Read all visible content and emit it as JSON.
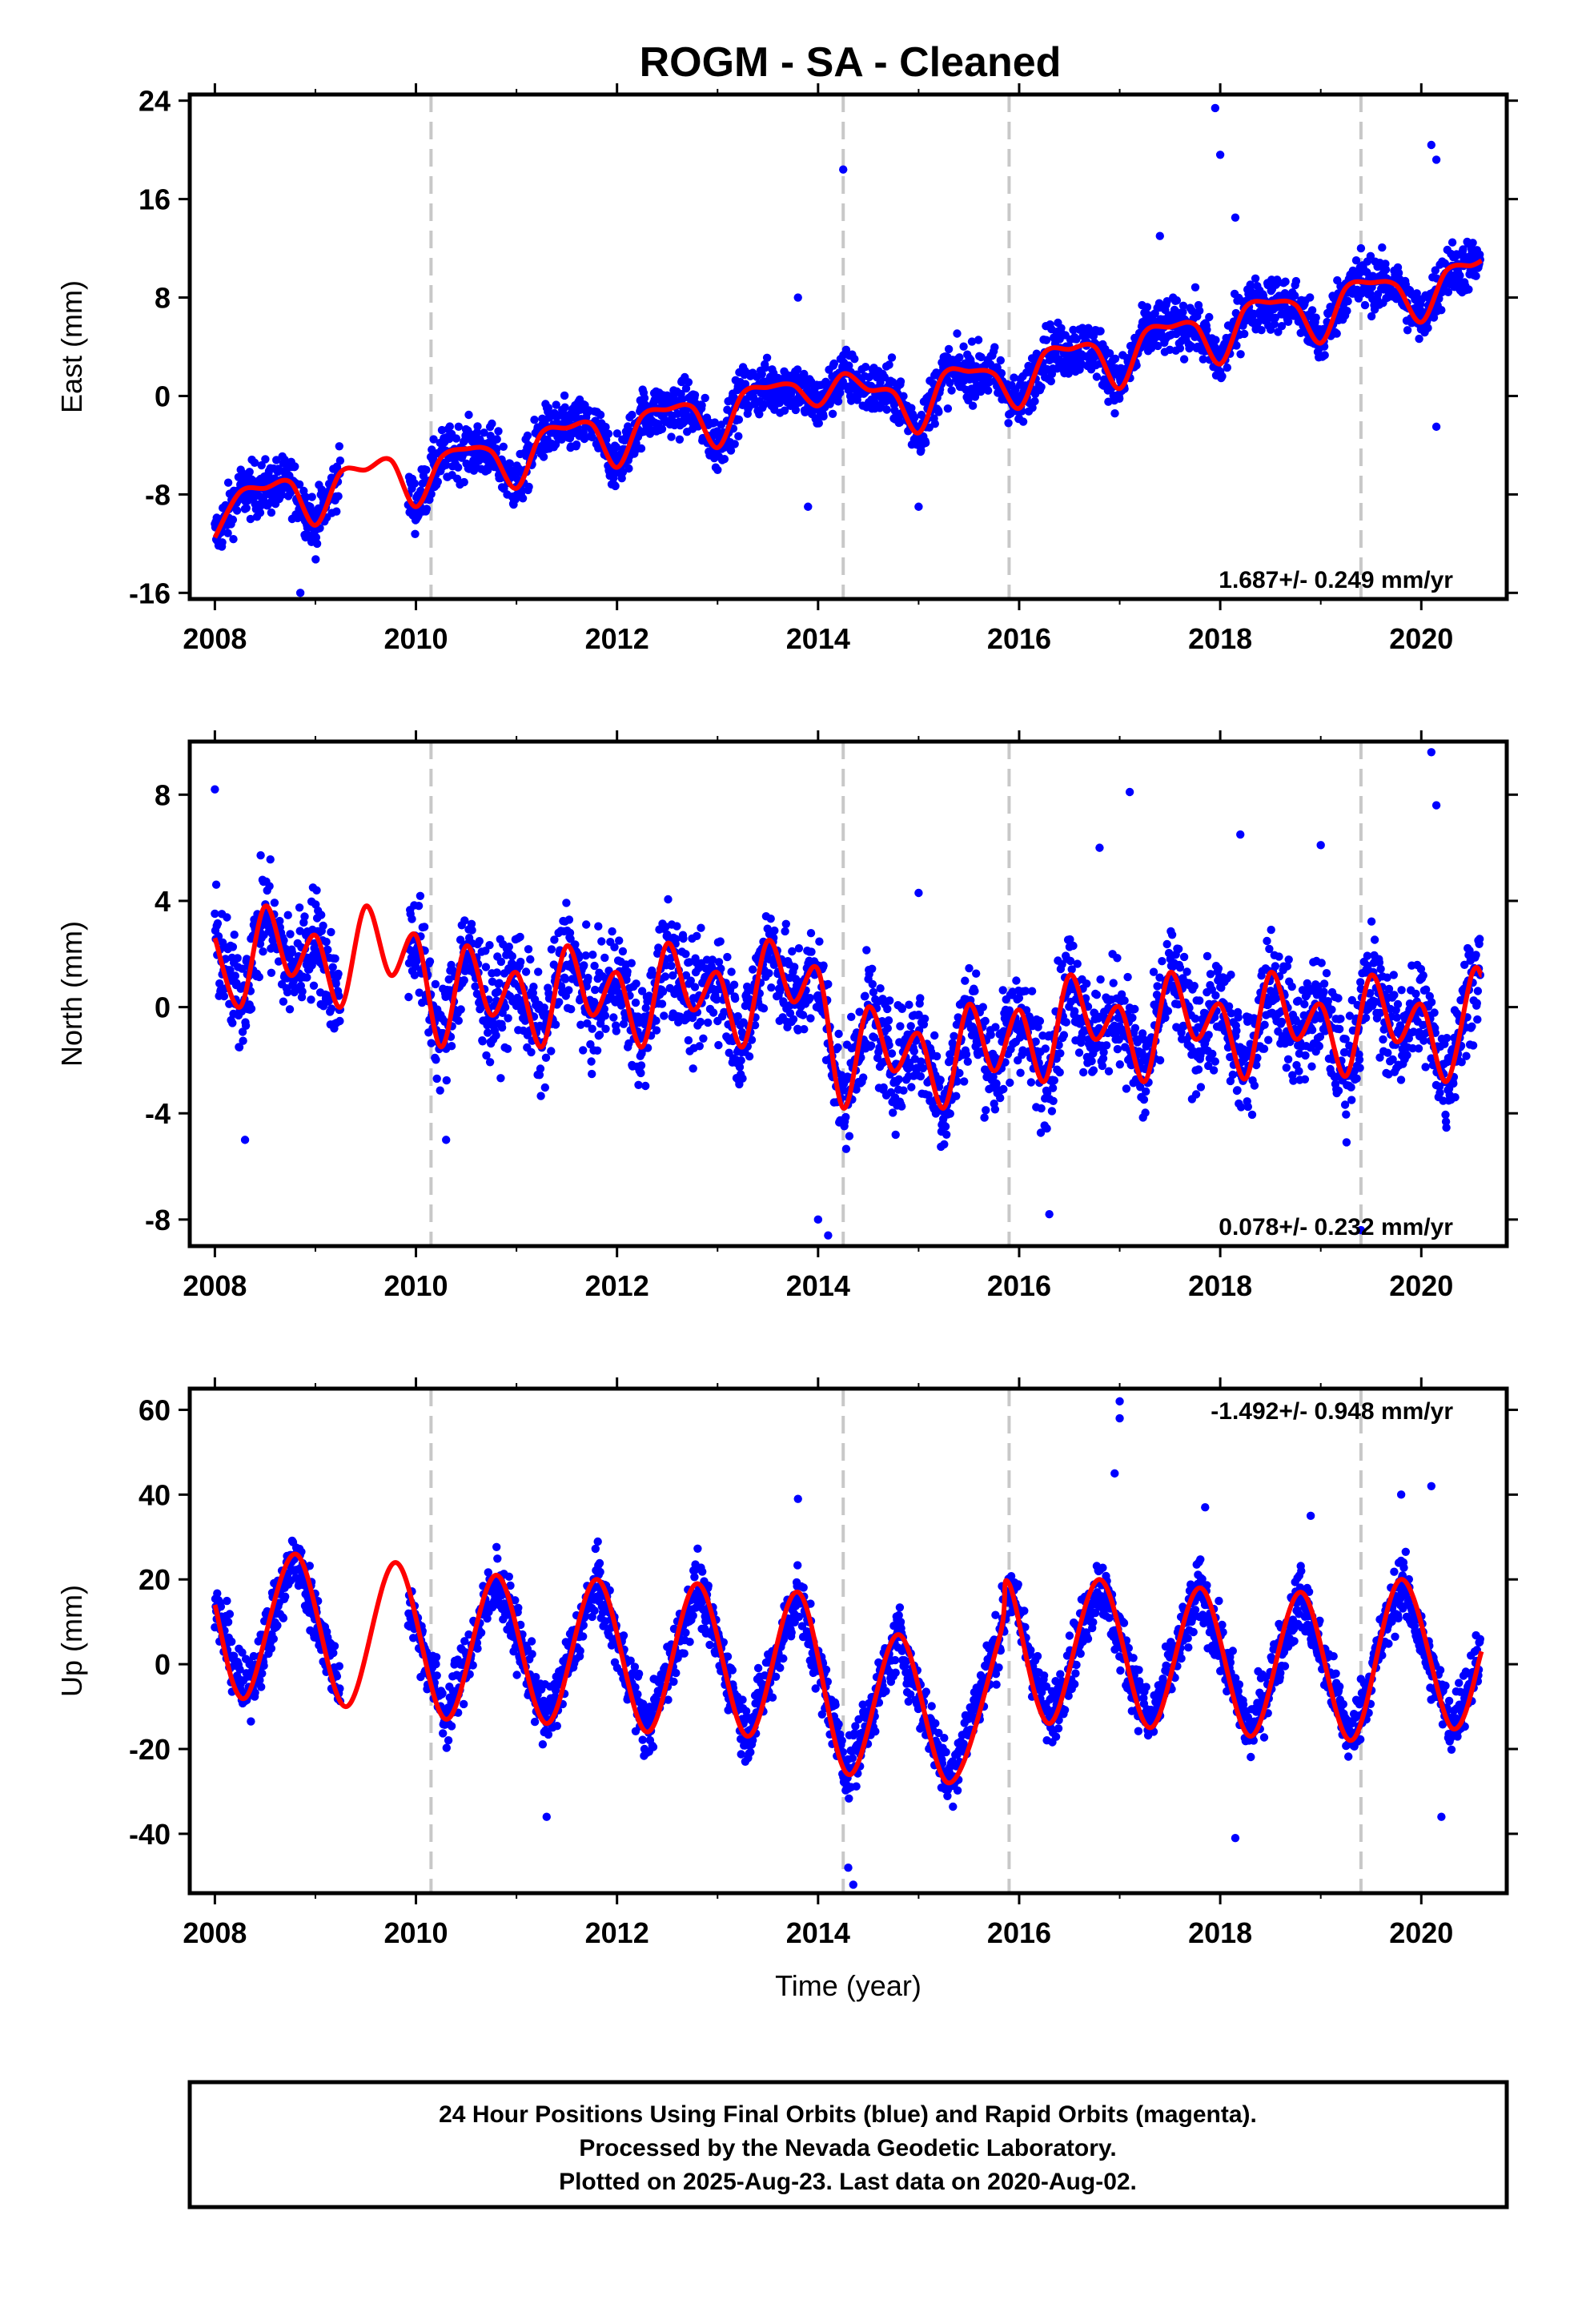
{
  "title": "ROGM  - SA - Cleaned",
  "footer": {
    "lines": [
      "24 Hour Positions Using Final Orbits (blue) and Rapid Orbits (magenta).",
      "Processed by the Nevada Geodetic Laboratory.",
      "Plotted on 2025-Aug-23. Last data on 2020-Aug-02."
    ]
  },
  "colors": {
    "data_points": "#0000ff",
    "model_curve": "#ff0000",
    "event_lines": "#c8c8c8",
    "frame": "#000000"
  },
  "chart_data": [
    {
      "type": "scatter",
      "ylabel": "East (mm)",
      "xlabel": "",
      "xlim": [
        2007.75,
        2020.85
      ],
      "ylim": [
        -16.5,
        24.5
      ],
      "xticks": [
        "2008",
        "2010",
        "2012",
        "2014",
        "2016",
        "2018",
        "2020"
      ],
      "yticks": [
        "24",
        "16",
        "8",
        "0",
        "-8",
        "-16"
      ],
      "rate_text": "1.687+/- 0.249 mm/yr",
      "event_lines_x": [
        2010.15,
        2014.25,
        2015.9,
        2019.4
      ],
      "model": {
        "x": [
          2008.0,
          2008.25,
          2008.5,
          2008.75,
          2009.0,
          2009.25,
          2009.5,
          2009.75,
          2010.0,
          2010.25,
          2010.5,
          2010.75,
          2011.0,
          2011.25,
          2011.5,
          2011.75,
          2012.0,
          2012.25,
          2012.5,
          2012.75,
          2013.0,
          2013.25,
          2013.5,
          2013.75,
          2014.0,
          2014.25,
          2014.5,
          2014.75,
          2015.0,
          2015.25,
          2015.5,
          2015.75,
          2016.0,
          2016.25,
          2016.5,
          2016.75,
          2017.0,
          2017.25,
          2017.5,
          2017.75,
          2018.0,
          2018.25,
          2018.5,
          2018.75,
          2019.0,
          2019.25,
          2019.5,
          2019.75,
          2020.0,
          2020.25,
          2020.5,
          2020.6
        ],
        "y": [
          -11.5,
          -7.8,
          -7.5,
          -7.0,
          -10.5,
          -6.2,
          -6.0,
          -5.2,
          -9.0,
          -5.0,
          -4.3,
          -4.5,
          -7.5,
          -3.0,
          -2.6,
          -2.3,
          -5.8,
          -1.6,
          -1.1,
          -0.9,
          -4.2,
          0.2,
          0.7,
          0.9,
          -0.8,
          1.8,
          0.5,
          0.3,
          -3.0,
          1.8,
          2.0,
          1.8,
          -1.0,
          3.5,
          3.8,
          4.0,
          0.6,
          5.2,
          5.6,
          5.8,
          2.6,
          7.2,
          7.6,
          7.4,
          4.3,
          8.8,
          9.2,
          9.0,
          6.0,
          10.2,
          10.6,
          11.0
        ]
      },
      "outliers": [
        [
          2008.85,
          -16.0
        ],
        [
          2014.25,
          18.4
        ],
        [
          2017.95,
          23.4
        ],
        [
          2018.0,
          19.6
        ],
        [
          2018.15,
          14.5
        ],
        [
          2020.1,
          20.4
        ],
        [
          2020.15,
          19.2
        ],
        [
          2020.15,
          -2.5
        ],
        [
          2013.9,
          -9.0
        ],
        [
          2015.0,
          -9.0
        ],
        [
          2017.4,
          13.0
        ],
        [
          2013.8,
          8.0
        ],
        [
          2019.4,
          12.0
        ]
      ]
    },
    {
      "type": "scatter",
      "ylabel": "North (mm)",
      "xlabel": "",
      "xlim": [
        2007.75,
        2020.85
      ],
      "ylim": [
        -9.0,
        10.0
      ],
      "xticks": [
        "2008",
        "2010",
        "2012",
        "2014",
        "2016",
        "2018",
        "2020"
      ],
      "yticks": [
        "8",
        "4",
        "0",
        "-4",
        "-8"
      ],
      "rate_text": "0.078+/- 0.232 mm/yr",
      "event_lines_x": [
        2010.15,
        2014.25,
        2015.9,
        2019.4
      ],
      "model": {
        "x": [
          2008.0,
          2008.25,
          2008.5,
          2008.75,
          2009.0,
          2009.25,
          2009.5,
          2009.75,
          2010.0,
          2010.25,
          2010.5,
          2010.75,
          2011.0,
          2011.25,
          2011.5,
          2011.75,
          2012.0,
          2012.25,
          2012.5,
          2012.75,
          2013.0,
          2013.25,
          2013.5,
          2013.75,
          2014.0,
          2014.25,
          2014.5,
          2014.75,
          2015.0,
          2015.25,
          2015.5,
          2015.75,
          2016.0,
          2016.25,
          2016.5,
          2016.75,
          2017.0,
          2017.25,
          2017.5,
          2017.75,
          2018.0,
          2018.25,
          2018.5,
          2018.75,
          2019.0,
          2019.25,
          2019.5,
          2019.75,
          2020.0,
          2020.25,
          2020.5,
          2020.6
        ],
        "y": [
          2.6,
          0.0,
          3.8,
          1.2,
          2.7,
          0.0,
          3.8,
          1.2,
          2.7,
          -1.5,
          2.3,
          -0.3,
          1.3,
          -1.5,
          2.3,
          -0.3,
          1.3,
          -1.5,
          2.4,
          -0.1,
          1.3,
          -1.5,
          2.5,
          0.2,
          1.4,
          -3.8,
          0.0,
          -2.4,
          -1.0,
          -3.8,
          0.1,
          -2.4,
          -0.1,
          -2.8,
          1.2,
          -1.2,
          0.0,
          -2.8,
          1.3,
          -1.2,
          0.1,
          -2.7,
          1.3,
          -1.2,
          0.1,
          -2.6,
          1.2,
          -1.3,
          0.1,
          -2.8,
          1.2,
          1.2
        ]
      },
      "outliers": [
        [
          2008.0,
          8.2
        ],
        [
          2020.1,
          9.6
        ],
        [
          2020.15,
          7.6
        ],
        [
          2017.1,
          8.1
        ],
        [
          2014.1,
          -8.6
        ],
        [
          2014.0,
          -8.0
        ],
        [
          2015.0,
          4.3
        ],
        [
          2016.8,
          6.0
        ],
        [
          2018.2,
          6.5
        ],
        [
          2019.0,
          6.1
        ],
        [
          2019.4,
          -8.4
        ],
        [
          2016.3,
          -7.8
        ],
        [
          2008.3,
          -5.0
        ],
        [
          2010.3,
          -5.0
        ]
      ]
    },
    {
      "type": "scatter",
      "ylabel": "Up (mm)",
      "xlabel": "Time (year)",
      "xlim": [
        2007.75,
        2020.85
      ],
      "ylim": [
        -54,
        65
      ],
      "xticks": [
        "2008",
        "2010",
        "2012",
        "2014",
        "2016",
        "2018",
        "2020"
      ],
      "yticks": [
        "60",
        "40",
        "20",
        "0",
        "-20",
        "-40"
      ],
      "rate_text": "-1.492+/- 0.948 mm/yr",
      "event_lines_x": [
        2010.15,
        2014.25,
        2015.9,
        2019.4
      ],
      "model": {
        "x": [
          2008.0,
          2008.3,
          2008.8,
          2009.3,
          2009.8,
          2010.3,
          2010.8,
          2011.3,
          2011.8,
          2012.3,
          2012.8,
          2013.3,
          2013.8,
          2014.3,
          2014.8,
          2015.3,
          2015.8,
          2015.9,
          2016.3,
          2016.8,
          2017.3,
          2017.8,
          2018.3,
          2018.8,
          2019.3,
          2019.8,
          2020.3,
          2020.6
        ],
        "y": [
          14,
          -8,
          26,
          -10,
          24,
          -13,
          21,
          -14,
          20,
          -16,
          19,
          -17,
          17,
          -26,
          7,
          -28,
          6,
          19,
          -14,
          20,
          -15,
          18,
          -17,
          17,
          -18,
          20,
          -15,
          3
        ]
      },
      "outliers": [
        [
          2017.0,
          62
        ],
        [
          2017.0,
          58
        ],
        [
          2016.95,
          45
        ],
        [
          2014.35,
          -52
        ],
        [
          2014.3,
          -48
        ],
        [
          2011.3,
          -36
        ],
        [
          2018.15,
          -41
        ],
        [
          2019.8,
          40
        ],
        [
          2020.1,
          42
        ],
        [
          2020.2,
          -36
        ],
        [
          2013.8,
          39
        ],
        [
          2017.85,
          37
        ],
        [
          2018.9,
          35
        ]
      ]
    }
  ]
}
